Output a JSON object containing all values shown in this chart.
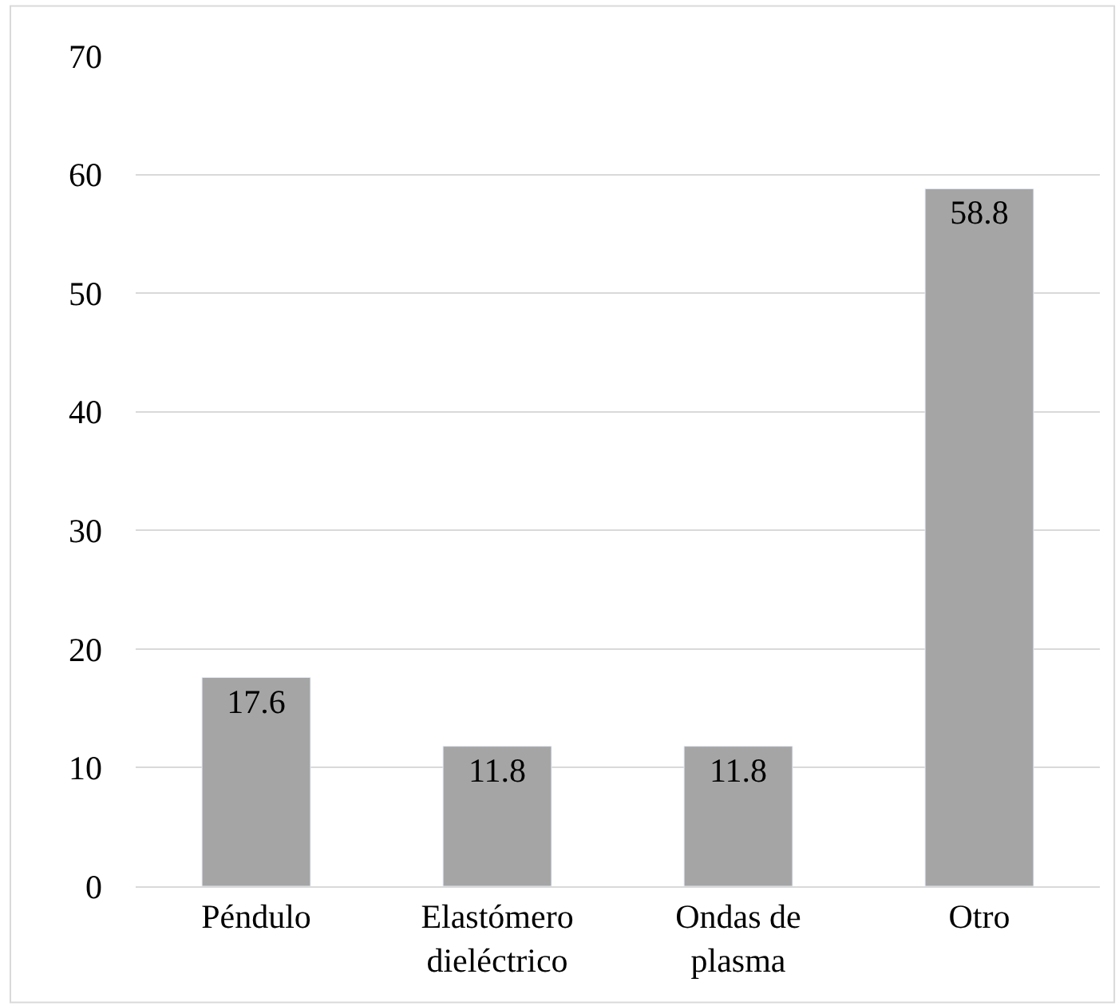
{
  "chart_data": {
    "type": "bar",
    "categories": [
      "Péndulo",
      "Elastómero dieléctrico",
      "Ondas de plasma",
      "Otro"
    ],
    "values": [
      17.6,
      11.8,
      11.8,
      58.8
    ],
    "color": "#a5a5a5",
    "ylim": [
      0,
      70
    ],
    "yticks": [
      0,
      10,
      20,
      30,
      40,
      50,
      60,
      70
    ],
    "grid": "y",
    "data_labels": true
  }
}
